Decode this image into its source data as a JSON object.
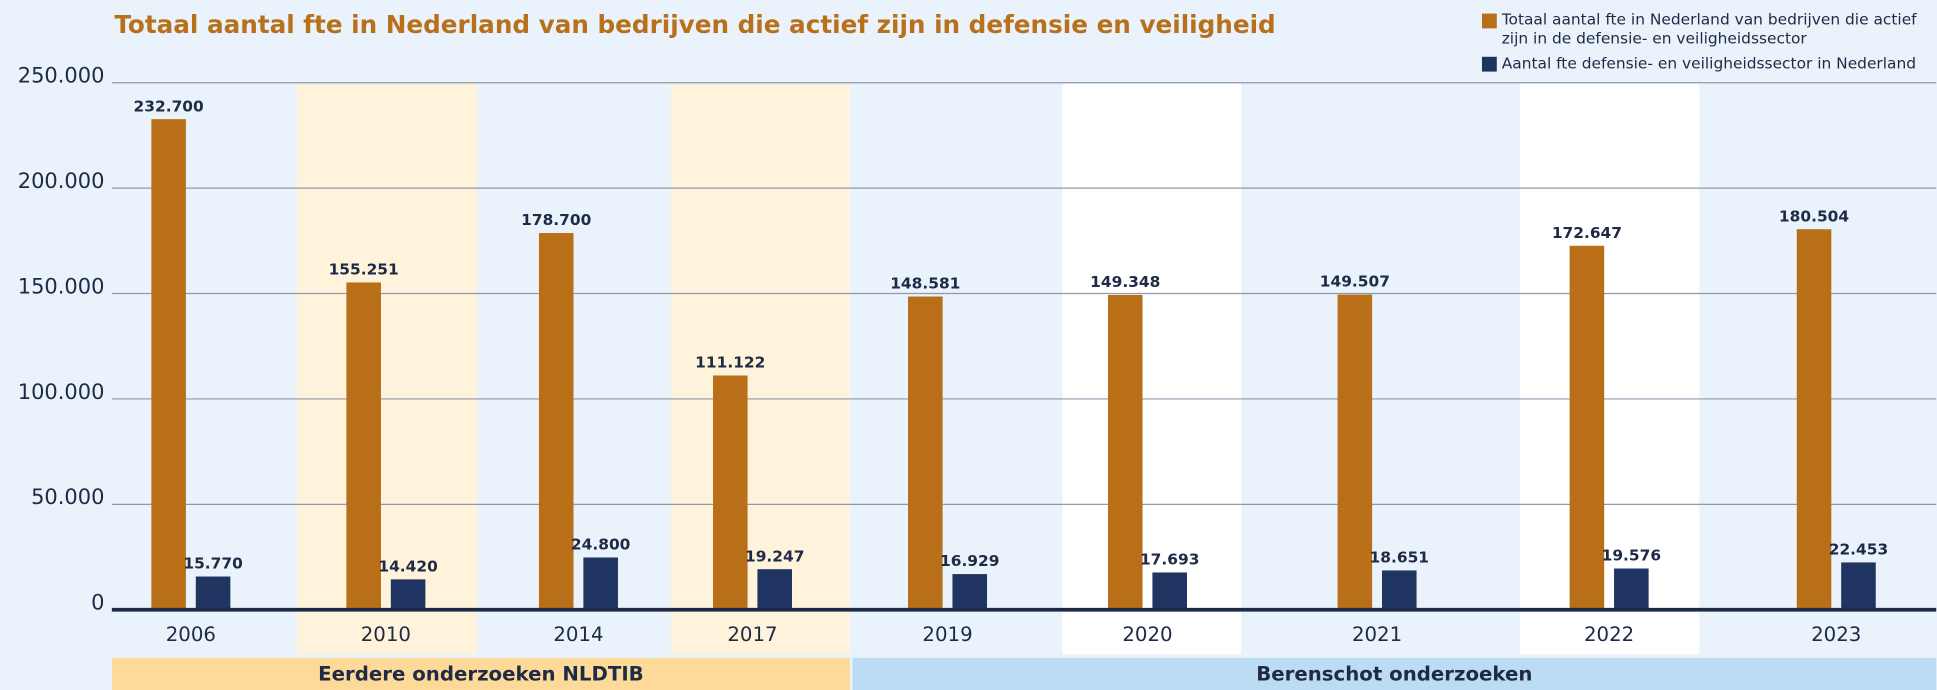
{
  "chart_data": {
    "type": "bar",
    "title": "Totaal aantal fte in Nederland van bedrijven die actief zijn in defensie en veiligheid",
    "categories": [
      "2006",
      "2010",
      "2014",
      "2017",
      "2019",
      "2020",
      "2021",
      "2022",
      "2023"
    ],
    "series": [
      {
        "name": "Totaal aantal fte in Nederland van bedrijven die actief zijn in de defensie- en veiligheidssector",
        "color": "#b86f18",
        "values": [
          232700,
          155251,
          178700,
          111122,
          148581,
          149348,
          149507,
          172647,
          180504
        ],
        "value_labels": [
          "232.700",
          "155.251",
          "178.700",
          "111.122",
          "148.581",
          "149.348",
          "149.507",
          "172.647",
          "180.504"
        ]
      },
      {
        "name": "Aantal fte defensie- en veiligheidssector in Nederland",
        "color": "#1f3461",
        "values": [
          15770,
          14420,
          24800,
          19247,
          16929,
          17693,
          18651,
          19576,
          22453
        ],
        "value_labels": [
          "15.770",
          "14.420",
          "24.800",
          "19.247",
          "16.929",
          "17.693",
          "18.651",
          "19.576",
          "22.453"
        ]
      }
    ],
    "groups": [
      "Eerdere onderzoeken NLDTIB",
      "Berenschot onderzoeken"
    ],
    "ylim": [
      0,
      250000
    ],
    "yticks": [
      0,
      {
        "value": 50000,
        "label": "50.000"
      },
      {
        "value": 100000,
        "label": "100.000"
      },
      {
        "value": 150000,
        "label": "150.000"
      },
      {
        "value": 200000,
        "label": "200.000"
      },
      {
        "value": 250000,
        "label": "250.000"
      }
    ],
    "grid": true
  }
}
